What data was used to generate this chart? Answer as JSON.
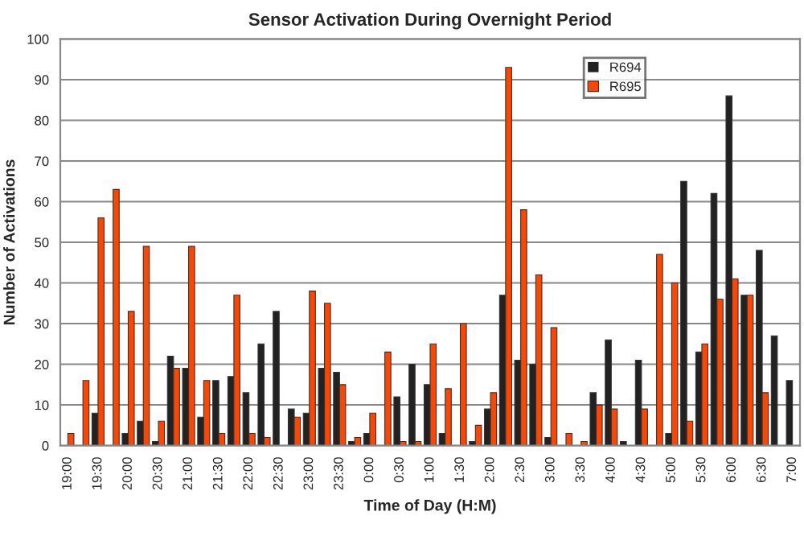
{
  "chart_data": {
    "type": "bar",
    "title": "Sensor Activation During Overnight Period",
    "xlabel": "Time of Day (H:M)",
    "ylabel": "Number of Activations",
    "categories": [
      "19:00",
      null,
      "19:30",
      null,
      "20:00",
      null,
      "20:30",
      null,
      "21:00",
      null,
      "21:30",
      null,
      "22:00",
      null,
      "22:30",
      null,
      "23:00",
      null,
      "23:30",
      null,
      "0:00",
      null,
      "0:30",
      null,
      "1:00",
      null,
      "1:30",
      null,
      "2:00",
      null,
      "2:30",
      null,
      "3:00",
      null,
      "3:30",
      null,
      "4:00",
      null,
      "4:30",
      null,
      "5:00",
      null,
      "5:30",
      null,
      "6:00",
      null,
      "6:30",
      null,
      "7:00"
    ],
    "series": [
      {
        "name": "R694",
        "color": "#222222",
        "values": [
          0,
          0,
          8,
          0,
          3,
          6,
          1,
          22,
          19,
          7,
          16,
          17,
          13,
          25,
          33,
          9,
          8,
          19,
          18,
          1,
          3,
          0,
          12,
          20,
          15,
          3,
          0,
          1,
          9,
          37,
          21,
          20,
          2,
          0,
          0,
          13,
          26,
          1,
          21,
          0,
          3,
          65,
          23,
          62,
          86,
          37,
          48,
          27,
          16
        ]
      },
      {
        "name": "R695",
        "color": "#ff4500",
        "values": [
          3,
          16,
          56,
          63,
          33,
          49,
          6,
          19,
          49,
          16,
          3,
          37,
          3,
          2,
          0,
          7,
          38,
          35,
          15,
          2,
          8,
          23,
          1,
          1,
          25,
          14,
          30,
          5,
          13,
          93,
          58,
          42,
          29,
          3,
          1,
          10,
          9,
          0,
          9,
          47,
          40,
          6,
          25,
          36,
          41,
          37,
          13,
          0,
          0
        ]
      }
    ],
    "ylim": [
      0,
      100
    ],
    "yticks": [
      0,
      10,
      20,
      30,
      40,
      50,
      60,
      70,
      80,
      90,
      100
    ],
    "grid": "y",
    "legend": "top right"
  }
}
